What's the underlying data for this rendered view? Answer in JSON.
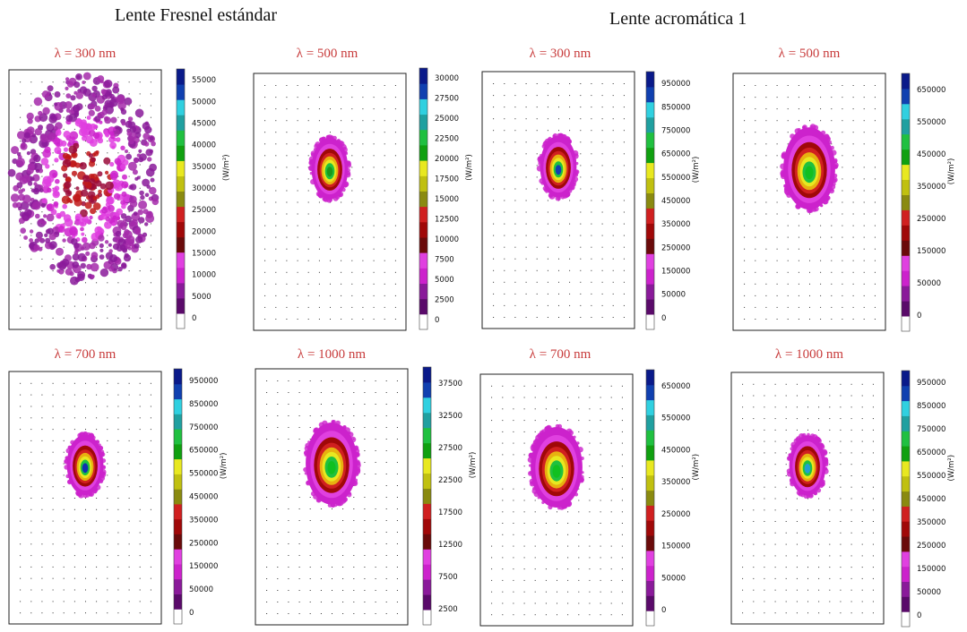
{
  "groups": [
    {
      "title": "Lente Fresnel estándar"
    },
    {
      "title": "Lente acromática 1"
    }
  ],
  "chart_data": [
    {
      "type": "heatmap",
      "group": "Lente Fresnel estándar",
      "title": "λ = 300 nm",
      "unit_label": "(W/m²)",
      "colorbar_ticks": [
        "0",
        "5000",
        "10000",
        "15000",
        "20000",
        "25000",
        "30000",
        "35000",
        "40000",
        "45000",
        "50000",
        "55000"
      ],
      "spot": {
        "shape": "diffuse",
        "peak_color": "#c81010",
        "outer_color": "#cc22cc"
      }
    },
    {
      "type": "heatmap",
      "group": "Lente Fresnel estándar",
      "title": "λ = 500 nm",
      "unit_label": "(W/m²)",
      "colorbar_ticks": [
        "0",
        "2500",
        "5000",
        "7500",
        "10000",
        "12500",
        "15000",
        "17500",
        "20000",
        "22500",
        "25000",
        "27500",
        "30000"
      ],
      "spot": {
        "shape": "compact",
        "peak_color": "#1a9a1a",
        "outer_color": "#cc22cc"
      }
    },
    {
      "type": "heatmap",
      "group": "Lente Fresnel estándar",
      "title": "λ = 700 nm",
      "unit_label": "(W/m²)",
      "colorbar_ticks": [
        "0",
        "50000",
        "150000",
        "250000",
        "350000",
        "450000",
        "550000",
        "650000",
        "750000",
        "850000",
        "950000"
      ],
      "spot": {
        "shape": "compact",
        "peak_color": "#1030b0",
        "outer_color": "#cc22cc"
      }
    },
    {
      "type": "heatmap",
      "group": "Lente Fresnel estándar",
      "title": "λ = 1000 nm",
      "unit_label": "(W/m²)",
      "colorbar_ticks": [
        "2500",
        "7500",
        "12500",
        "17500",
        "22500",
        "27500",
        "32500",
        "37500"
      ],
      "spot": {
        "shape": "medium",
        "peak_color": "#10c020",
        "outer_color": "#cc22cc"
      }
    },
    {
      "type": "heatmap",
      "group": "Lente acromática 1",
      "title": "λ = 300 nm",
      "unit_label": "(W/m²)",
      "colorbar_ticks": [
        "0",
        "50000",
        "150000",
        "250000",
        "350000",
        "450000",
        "550000",
        "650000",
        "750000",
        "850000",
        "950000"
      ],
      "spot": {
        "shape": "compact",
        "peak_color": "#1040b0",
        "outer_color": "#cc22cc"
      }
    },
    {
      "type": "heatmap",
      "group": "Lente acromática 1",
      "title": "λ = 500 nm",
      "unit_label": "(W/m²)",
      "colorbar_ticks": [
        "0",
        "50000",
        "150000",
        "250000",
        "350000",
        "450000",
        "550000",
        "650000"
      ],
      "spot": {
        "shape": "medium",
        "peak_color": "#10c020",
        "outer_color": "#cc22cc"
      }
    },
    {
      "type": "heatmap",
      "group": "Lente acromática 1",
      "title": "λ = 700 nm",
      "unit_label": "(W/m²)",
      "colorbar_ticks": [
        "0",
        "50000",
        "150000",
        "250000",
        "350000",
        "450000",
        "550000",
        "650000"
      ],
      "spot": {
        "shape": "medium",
        "peak_color": "#10c020",
        "outer_color": "#cc22cc"
      }
    },
    {
      "type": "heatmap",
      "group": "Lente acromática 1",
      "title": "λ = 1000 nm",
      "unit_label": "(W/m²)",
      "colorbar_ticks": [
        "0",
        "50000",
        "150000",
        "250000",
        "350000",
        "450000",
        "550000",
        "650000",
        "750000",
        "850000",
        "950000"
      ],
      "spot": {
        "shape": "compact",
        "peak_color": "#20a0d0",
        "outer_color": "#cc22cc"
      }
    }
  ]
}
